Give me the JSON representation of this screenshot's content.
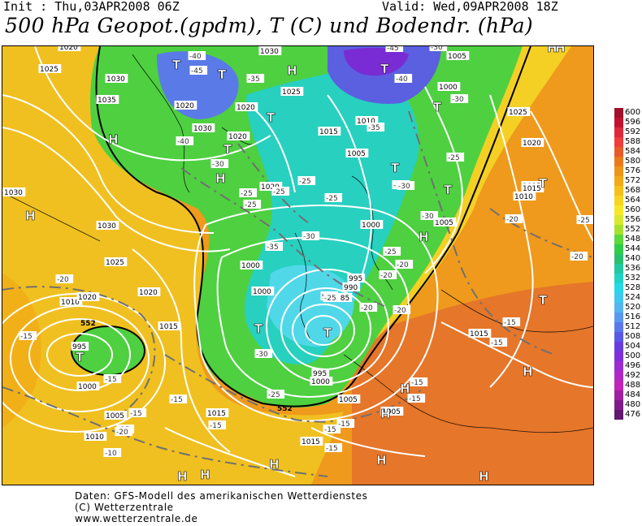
{
  "header": {
    "init": "Init : Thu,03APR2008 06Z",
    "valid": "Valid: Wed,09APR2008 18Z",
    "title": "500 hPa Geopot.(gpdm), T (C) und Bodendr. (hPa)"
  },
  "legend": {
    "values": [
      "600",
      "596",
      "592",
      "588",
      "584",
      "580",
      "576",
      "572",
      "568",
      "564",
      "560",
      "556",
      "552",
      "548",
      "544",
      "540",
      "536",
      "532",
      "528",
      "524",
      "520",
      "516",
      "512",
      "508",
      "504",
      "500",
      "496",
      "492",
      "488",
      "484",
      "480",
      "476"
    ],
    "colors": [
      "#a0102a",
      "#c41030",
      "#e0283a",
      "#f03c3c",
      "#e85a28",
      "#ea7a1c",
      "#ee9418",
      "#f2aa18",
      "#f6c01c",
      "#f8d420",
      "#f8e628",
      "#d8e830",
      "#a8e030",
      "#5ad83c",
      "#30cc48",
      "#28c070",
      "#22c8a0",
      "#20d4c4",
      "#28d8e8",
      "#40c8f0",
      "#56b4f0",
      "#5a98f0",
      "#5a78ec",
      "#5a58e6",
      "#6a3ce0",
      "#8030d8",
      "#9a2cd0",
      "#b028c4",
      "#c024b8",
      "#a020a0",
      "#801c88",
      "#601870"
    ]
  },
  "map": {
    "pressure_labels": [
      {
        "t": "1020"
      },
      {
        "t": "1025"
      },
      {
        "t": "1030"
      },
      {
        "t": "1035"
      },
      {
        "t": "1020"
      },
      {
        "t": "1030"
      },
      {
        "t": "1005"
      },
      {
        "t": "1000"
      },
      {
        "t": "1025"
      },
      {
        "t": "1020"
      },
      {
        "t": "1030"
      },
      {
        "t": "1025"
      },
      {
        "t": "1020"
      },
      {
        "t": "1015"
      },
      {
        "t": "1010"
      },
      {
        "t": "1005"
      },
      {
        "t": "1020"
      },
      {
        "t": "1020"
      },
      {
        "t": "1015"
      },
      {
        "t": "1010"
      },
      {
        "t": "1000"
      },
      {
        "t": "1005"
      },
      {
        "t": "1000"
      },
      {
        "t": "1000"
      },
      {
        "t": "995"
      },
      {
        "t": "990"
      },
      {
        "t": "985"
      },
      {
        "t": "980"
      },
      {
        "t": "995"
      },
      {
        "t": "1000"
      },
      {
        "t": "1005"
      },
      {
        "t": "1005"
      },
      {
        "t": "1015"
      },
      {
        "t": "1015"
      },
      {
        "t": "1020"
      },
      {
        "t": "1015"
      },
      {
        "t": "1015"
      },
      {
        "t": "1010"
      },
      {
        "t": "1005"
      },
      {
        "t": "1000"
      },
      {
        "t": "995"
      },
      {
        "t": "1010"
      },
      {
        "t": "1020"
      },
      {
        "t": "1025"
      },
      {
        "t": "1030"
      },
      {
        "t": "1030"
      },
      {
        "t": "1015"
      }
    ],
    "temp_labels": [
      {
        "t": "-40"
      },
      {
        "t": "-45"
      },
      {
        "t": "-35"
      },
      {
        "t": "-45"
      },
      {
        "t": "-40"
      },
      {
        "t": "-30"
      },
      {
        "t": "-30"
      },
      {
        "t": "-40"
      },
      {
        "t": "-30"
      },
      {
        "t": "-35"
      },
      {
        "t": "-25"
      },
      {
        "t": "-25"
      },
      {
        "t": "-25"
      },
      {
        "t": "-25"
      },
      {
        "t": "-25"
      },
      {
        "t": "-30"
      },
      {
        "t": "-30"
      },
      {
        "t": "-35"
      },
      {
        "t": "-25"
      },
      {
        "t": "-20"
      },
      {
        "t": "-20"
      },
      {
        "t": "-20"
      },
      {
        "t": "-20"
      },
      {
        "t": "-20"
      },
      {
        "t": "-25"
      },
      {
        "t": "-30"
      },
      {
        "t": "-15"
      },
      {
        "t": "-15"
      },
      {
        "t": "-15"
      },
      {
        "t": "-15"
      },
      {
        "t": "-15"
      },
      {
        "t": "-20"
      },
      {
        "t": "-15"
      },
      {
        "t": "-15"
      },
      {
        "t": "-15"
      },
      {
        "t": "-10"
      },
      {
        "t": "-15"
      },
      {
        "t": "-15"
      },
      {
        "t": "-15"
      },
      {
        "t": "-15"
      },
      {
        "t": "-15"
      },
      {
        "t": "-15"
      },
      {
        "t": "-20"
      },
      {
        "t": "-25"
      },
      {
        "t": "-20"
      },
      {
        "t": "-30"
      },
      {
        "t": "-25"
      },
      {
        "t": "-25"
      },
      {
        "t": "-30"
      }
    ],
    "center_markers": [
      {
        "t": "T"
      },
      {
        "t": "T"
      },
      {
        "t": "T"
      },
      {
        "t": "T"
      },
      {
        "t": "T"
      },
      {
        "t": "T"
      },
      {
        "t": "T"
      },
      {
        "t": "T"
      },
      {
        "t": "T"
      },
      {
        "t": "T"
      },
      {
        "t": "T"
      },
      {
        "t": "T"
      },
      {
        "t": "T"
      },
      {
        "t": "H"
      },
      {
        "t": "H"
      },
      {
        "t": "H"
      },
      {
        "t": "H"
      },
      {
        "t": "H"
      },
      {
        "t": "H"
      },
      {
        "t": "H"
      },
      {
        "t": "H"
      },
      {
        "t": "H"
      },
      {
        "t": "H"
      },
      {
        "t": "H"
      },
      {
        "t": "H"
      },
      {
        "t": "H"
      },
      {
        "t": "H"
      },
      {
        "t": "H"
      },
      {
        "t": "H"
      }
    ],
    "geopot_552_labels": [
      "552",
      "552"
    ]
  },
  "credits": {
    "line1": "Daten: GFS-Modell des amerikanischen Wetterdienstes",
    "line2": "(C) Wetterzentrale",
    "line3": "www.wetterzentrale.de"
  }
}
